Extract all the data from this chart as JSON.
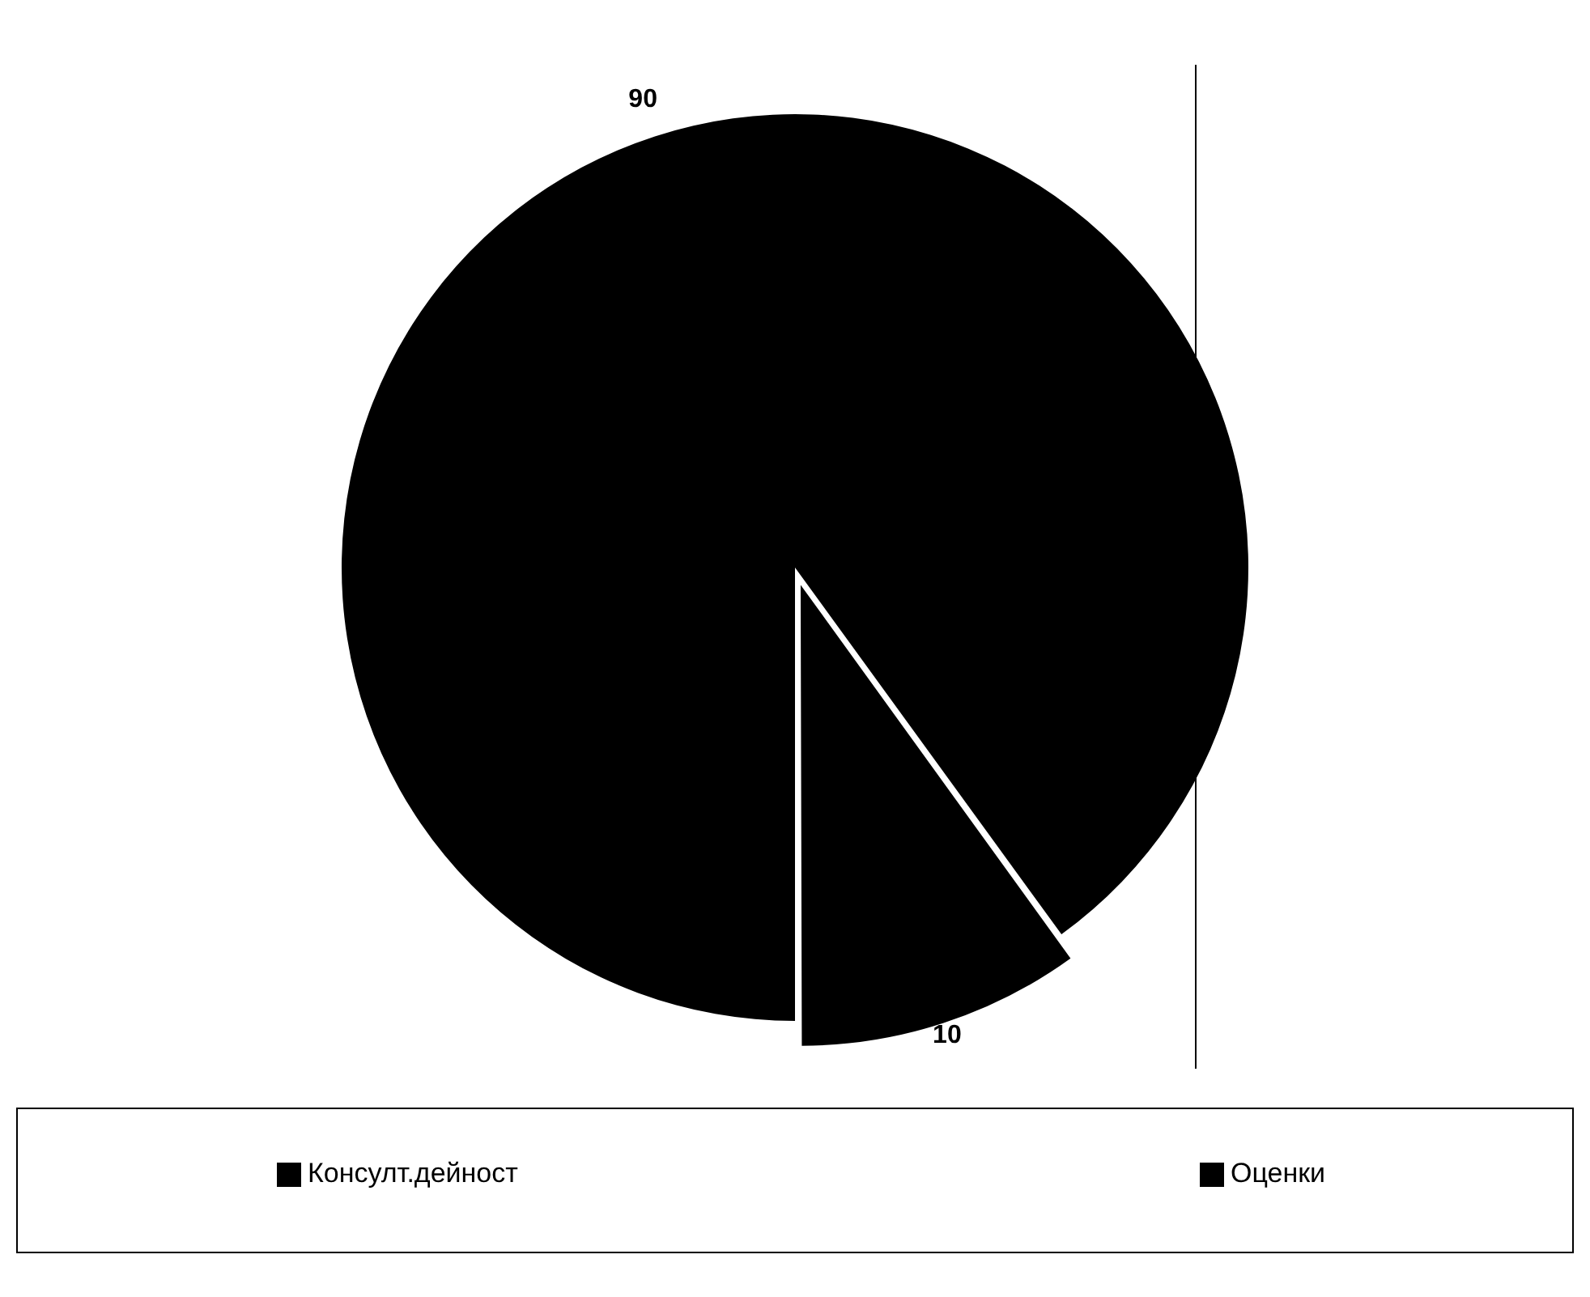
{
  "chart_data": {
    "type": "pie",
    "categories": [
      "Консулт.дейност",
      "Оценки"
    ],
    "values": [
      90,
      10
    ],
    "colors": [
      "#000000",
      "#000000"
    ],
    "data_labels": true,
    "legend": "bottom"
  }
}
